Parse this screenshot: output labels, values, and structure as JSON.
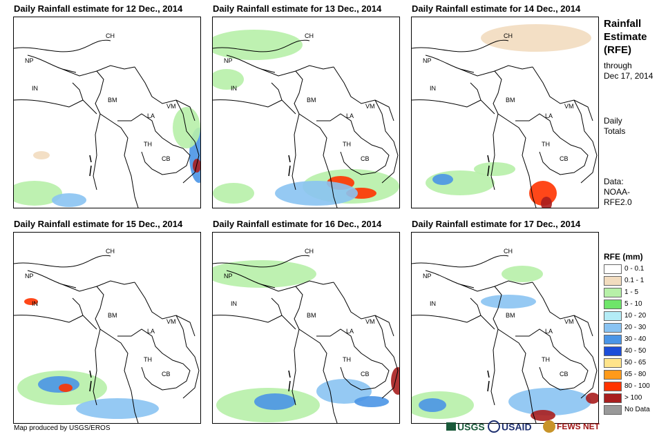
{
  "panels": [
    {
      "title": "Daily Rainfall estimate for 12 Dec., 2014"
    },
    {
      "title": "Daily Rainfall estimate for 13 Dec., 2014"
    },
    {
      "title": "Daily Rainfall estimate for 14 Dec., 2014"
    },
    {
      "title": "Daily Rainfall estimate for 15 Dec., 2014"
    },
    {
      "title": "Daily Rainfall estimate for 16 Dec., 2014"
    },
    {
      "title": "Daily Rainfall estimate for 17 Dec., 2014"
    }
  ],
  "country_labels": {
    "ch": "CH",
    "np": "NP",
    "in": "IN",
    "bm": "BM",
    "la": "LA",
    "vm": "VM",
    "th": "TH",
    "cb": "CB"
  },
  "sidebar": {
    "title_lines": [
      "Rainfall",
      "Estimate",
      "(RFE)"
    ],
    "through_lines": [
      "through",
      "Dec 17, 2014"
    ],
    "daily_lines": [
      "Daily",
      "Totals"
    ],
    "data_lines": [
      "Data:",
      "NOAA-",
      "RFE2.0"
    ]
  },
  "legend": {
    "title": "RFE (mm)",
    "items": [
      {
        "label": "0 - 0.1",
        "color": "#ffffff"
      },
      {
        "label": "0.1 - 1",
        "color": "#f2dcbf"
      },
      {
        "label": "1 - 5",
        "color": "#b7f0a8"
      },
      {
        "label": "5 - 10",
        "color": "#6fe56a"
      },
      {
        "label": "10 - 20",
        "color": "#b4ecf6"
      },
      {
        "label": "20 - 30",
        "color": "#89c3f2"
      },
      {
        "label": "30 - 40",
        "color": "#4a95e6"
      },
      {
        "label": "40 - 50",
        "color": "#1d4ed8"
      },
      {
        "label": "50 - 65",
        "color": "#ffe48a"
      },
      {
        "label": "65 - 80",
        "color": "#ff9a1a"
      },
      {
        "label": "80 - 100",
        "color": "#ff3300"
      },
      {
        "label": "> 100",
        "color": "#a81e1e"
      },
      {
        "label": "No Data",
        "color": "#999999"
      }
    ]
  },
  "credit": "Map produced by USGS/EROS",
  "logos": {
    "usgs": "USGS",
    "usaid": "USAID",
    "fewsnet": "FEWS NET"
  }
}
